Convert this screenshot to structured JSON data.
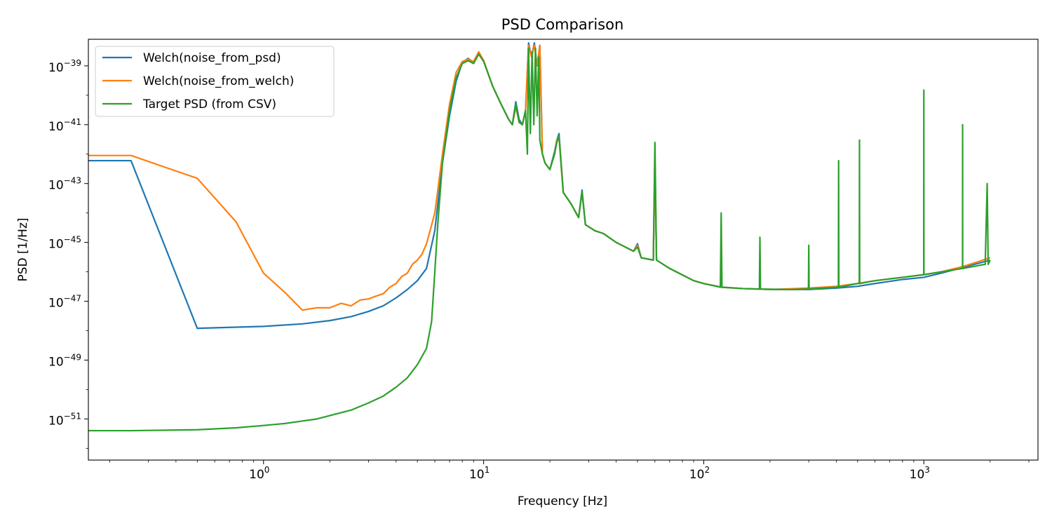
{
  "chart_data": {
    "type": "line",
    "title": "PSD Comparison",
    "xlabel": "Frequency [Hz]",
    "ylabel": "PSD [1/Hz]",
    "xscale": "log",
    "yscale": "log",
    "xlim": [
      0.16,
      3300
    ],
    "ylim": [
      4e-53,
      8e-39
    ],
    "x_ticks": [
      {
        "value": 1,
        "base": "10",
        "exp": "0"
      },
      {
        "value": 10,
        "base": "10",
        "exp": "1"
      },
      {
        "value": 100,
        "base": "10",
        "exp": "2"
      },
      {
        "value": 1000,
        "base": "10",
        "exp": "3"
      }
    ],
    "y_ticks": [
      {
        "value": 1e-51,
        "base": "10",
        "exp": "−51"
      },
      {
        "value": 1e-49,
        "base": "10",
        "exp": "−49"
      },
      {
        "value": 1e-47,
        "base": "10",
        "exp": "−47"
      },
      {
        "value": 1e-45,
        "base": "10",
        "exp": "−45"
      },
      {
        "value": 1e-43,
        "base": "10",
        "exp": "−43"
      },
      {
        "value": 1e-41,
        "base": "10",
        "exp": "−41"
      },
      {
        "value": 1e-39,
        "base": "10",
        "exp": "−39"
      }
    ],
    "legend_position": "top-left",
    "series": [
      {
        "name": "Welch(noise_from_psd)",
        "color": "#1f77b4",
        "points": [
          [
            0.16,
            6e-43
          ],
          [
            0.25,
            6e-43
          ],
          [
            0.5,
            1.2e-48
          ],
          [
            1,
            1.4e-48
          ],
          [
            1.5,
            1.7e-48
          ],
          [
            2,
            2.2e-48
          ],
          [
            2.5,
            3e-48
          ],
          [
            3,
            4.5e-48
          ],
          [
            3.5,
            7e-48
          ],
          [
            4,
            1.3e-47
          ],
          [
            4.5,
            2.5e-47
          ],
          [
            5,
            5e-47
          ],
          [
            5.5,
            1.3e-46
          ],
          [
            6,
            2.5e-45
          ],
          [
            6.5,
            5e-43
          ],
          [
            7,
            2e-41
          ],
          [
            7.5,
            3e-40
          ],
          [
            8,
            1.3e-39
          ],
          [
            8.5,
            1.8e-39
          ],
          [
            9,
            1.3e-39
          ],
          [
            9.5,
            2.8e-39
          ],
          [
            10,
            1.5e-39
          ],
          [
            11,
            2e-40
          ],
          [
            12,
            5e-41
          ],
          [
            13,
            1.5e-41
          ],
          [
            13.5,
            1e-41
          ],
          [
            14,
            6e-41
          ],
          [
            14.5,
            1.5e-41
          ],
          [
            15,
            1e-41
          ],
          [
            15.5,
            3e-41
          ],
          [
            16,
            6e-39
          ],
          [
            16.5,
            2e-39
          ],
          [
            17,
            6e-39
          ],
          [
            17.5,
            1e-39
          ],
          [
            18,
            5e-39
          ],
          [
            18.5,
            1e-42
          ],
          [
            19,
            5e-43
          ],
          [
            20,
            3e-43
          ],
          [
            21,
            1.2e-42
          ],
          [
            21.5,
            3e-42
          ],
          [
            22,
            5e-42
          ],
          [
            22.5,
            5e-43
          ],
          [
            23,
            5e-44
          ],
          [
            25,
            2e-44
          ],
          [
            27,
            7e-45
          ],
          [
            28,
            6e-44
          ],
          [
            29,
            4e-45
          ],
          [
            32,
            2.5e-45
          ],
          [
            35,
            2e-45
          ],
          [
            40,
            1e-45
          ],
          [
            48,
            5e-46
          ],
          [
            50,
            9e-46
          ],
          [
            52,
            3e-46
          ],
          [
            59,
            2.5e-46
          ],
          [
            60,
            8e-43
          ],
          [
            61,
            2.5e-46
          ],
          [
            70,
            1.3e-46
          ],
          [
            90,
            5e-47
          ],
          [
            100,
            4e-47
          ],
          [
            120,
            3e-47
          ],
          [
            150,
            2.7e-47
          ],
          [
            200,
            2.5e-47
          ],
          [
            300,
            2.5e-47
          ],
          [
            400,
            2.8e-47
          ],
          [
            500,
            3.2e-47
          ],
          [
            600,
            4e-47
          ],
          [
            800,
            5.5e-47
          ],
          [
            1000,
            6.5e-47
          ],
          [
            1200,
            9e-47
          ],
          [
            1500,
            1.4e-46
          ],
          [
            2000,
            2.5e-46
          ]
        ]
      },
      {
        "name": "Welch(noise_from_welch)",
        "color": "#ff7f0e",
        "points": [
          [
            0.16,
            9e-43
          ],
          [
            0.25,
            9e-43
          ],
          [
            0.5,
            1.5e-43
          ],
          [
            0.75,
            5e-45
          ],
          [
            1,
            9e-47
          ],
          [
            1.25,
            2e-47
          ],
          [
            1.5,
            5e-48
          ],
          [
            1.75,
            6e-48
          ],
          [
            2,
            6e-48
          ],
          [
            2.25,
            8.5e-48
          ],
          [
            2.5,
            7e-48
          ],
          [
            2.75,
            1.1e-47
          ],
          [
            3,
            1.2e-47
          ],
          [
            3.25,
            1.5e-47
          ],
          [
            3.5,
            1.8e-47
          ],
          [
            3.75,
            3e-47
          ],
          [
            4,
            4e-47
          ],
          [
            4.25,
            7e-47
          ],
          [
            4.5,
            9e-47
          ],
          [
            4.75,
            1.8e-46
          ],
          [
            5,
            2.5e-46
          ],
          [
            5.25,
            4e-46
          ],
          [
            5.5,
            9e-46
          ],
          [
            5.75,
            3e-45
          ],
          [
            6,
            1e-44
          ],
          [
            6.5,
            1e-42
          ],
          [
            7,
            5e-41
          ],
          [
            7.5,
            6e-40
          ],
          [
            8,
            1.4e-39
          ],
          [
            8.5,
            1.7e-39
          ],
          [
            9,
            1.4e-39
          ],
          [
            9.5,
            3e-39
          ],
          [
            10,
            1.5e-39
          ],
          [
            11,
            2e-40
          ],
          [
            12,
            5e-41
          ],
          [
            13,
            1.5e-41
          ],
          [
            13.5,
            1e-41
          ],
          [
            14,
            4e-41
          ],
          [
            14.5,
            1.2e-41
          ],
          [
            15,
            1e-41
          ],
          [
            15.5,
            3e-41
          ],
          [
            16,
            5e-39
          ],
          [
            16.5,
            2e-39
          ],
          [
            17,
            5e-39
          ],
          [
            17.5,
            1e-39
          ],
          [
            18,
            5e-39
          ],
          [
            18.5,
            1e-42
          ],
          [
            19,
            5e-43
          ],
          [
            20,
            3e-43
          ],
          [
            21,
            1e-42
          ],
          [
            21.5,
            3e-42
          ],
          [
            22,
            4e-42
          ],
          [
            22.5,
            5e-43
          ],
          [
            23,
            5e-44
          ],
          [
            25,
            2e-44
          ],
          [
            27,
            7e-45
          ],
          [
            28,
            5e-44
          ],
          [
            29,
            4e-45
          ],
          [
            32,
            2.5e-45
          ],
          [
            35,
            2e-45
          ],
          [
            40,
            1e-45
          ],
          [
            48,
            5e-46
          ],
          [
            50,
            8e-46
          ],
          [
            52,
            3e-46
          ],
          [
            59,
            2.5e-46
          ],
          [
            60,
            6e-43
          ],
          [
            61,
            2.5e-46
          ],
          [
            70,
            1.3e-46
          ],
          [
            90,
            5e-47
          ],
          [
            100,
            4e-47
          ],
          [
            120,
            3e-47
          ],
          [
            150,
            2.7e-47
          ],
          [
            200,
            2.5e-47
          ],
          [
            300,
            2.8e-47
          ],
          [
            400,
            3.2e-47
          ],
          [
            500,
            4e-47
          ],
          [
            600,
            5e-47
          ],
          [
            800,
            6.5e-47
          ],
          [
            1000,
            8e-47
          ],
          [
            1200,
            1e-46
          ],
          [
            1500,
            1.5e-46
          ],
          [
            2000,
            3e-46
          ]
        ]
      },
      {
        "name": "Target PSD (from CSV)",
        "color": "#2ca02c",
        "points": [
          [
            0.16,
            4e-52
          ],
          [
            0.25,
            4e-52
          ],
          [
            0.5,
            4.3e-52
          ],
          [
            0.75,
            5e-52
          ],
          [
            1,
            6e-52
          ],
          [
            1.25,
            7e-52
          ],
          [
            1.5,
            8.5e-52
          ],
          [
            1.75,
            1e-51
          ],
          [
            2,
            1.3e-51
          ],
          [
            2.5,
            2e-51
          ],
          [
            3,
            3.5e-51
          ],
          [
            3.5,
            6e-51
          ],
          [
            4,
            1.2e-50
          ],
          [
            4.5,
            2.5e-50
          ],
          [
            5,
            7e-50
          ],
          [
            5.5,
            2.5e-49
          ],
          [
            5.8,
            2e-48
          ],
          [
            6,
            1e-46
          ],
          [
            6.2,
            5e-45
          ],
          [
            6.5,
            5e-43
          ],
          [
            7,
            3e-41
          ],
          [
            7.5,
            4e-40
          ],
          [
            8,
            1.2e-39
          ],
          [
            8.5,
            1.5e-39
          ],
          [
            9,
            1.2e-39
          ],
          [
            9.5,
            2.5e-39
          ],
          [
            10,
            1.4e-39
          ],
          [
            11,
            2e-40
          ],
          [
            12,
            5e-41
          ],
          [
            13,
            1.5e-41
          ],
          [
            13.5,
            1e-41
          ],
          [
            14,
            5e-41
          ],
          [
            14.5,
            1.2e-41
          ],
          [
            15,
            1e-41
          ],
          [
            15.5,
            3e-41
          ],
          [
            15.8,
            1e-42
          ],
          [
            16,
            4e-39
          ],
          [
            16.3,
            5e-42
          ],
          [
            16.6,
            3e-39
          ],
          [
            16.9,
            1e-41
          ],
          [
            17.2,
            4e-39
          ],
          [
            17.5,
            2e-41
          ],
          [
            17.8,
            2e-39
          ],
          [
            18,
            3e-42
          ],
          [
            18.5,
            1e-42
          ],
          [
            19,
            5e-43
          ],
          [
            20,
            3e-43
          ],
          [
            21,
            1e-42
          ],
          [
            21.5,
            2.5e-42
          ],
          [
            22,
            4e-42
          ],
          [
            22.5,
            4e-43
          ],
          [
            23,
            5e-44
          ],
          [
            25,
            2e-44
          ],
          [
            27,
            7e-45
          ],
          [
            28,
            5e-44
          ],
          [
            29,
            4e-45
          ],
          [
            32,
            2.5e-45
          ],
          [
            35,
            2e-45
          ],
          [
            40,
            1e-45
          ],
          [
            48,
            5e-46
          ],
          [
            50,
            7e-46
          ],
          [
            52,
            3e-46
          ],
          [
            59,
            2.5e-46
          ],
          [
            60,
            2.5e-42
          ],
          [
            61,
            2.5e-46
          ],
          [
            70,
            1.3e-46
          ],
          [
            90,
            5e-47
          ],
          [
            100,
            4e-47
          ],
          [
            119,
            3e-47
          ],
          [
            120,
            1e-44
          ],
          [
            121,
            3e-47
          ],
          [
            150,
            2.7e-47
          ],
          [
            179,
            2.6e-47
          ],
          [
            180,
            1.5e-45
          ],
          [
            181,
            2.6e-47
          ],
          [
            250,
            2.5e-47
          ],
          [
            299,
            2.6e-47
          ],
          [
            300,
            8e-46
          ],
          [
            301,
            2.6e-47
          ],
          [
            400,
            3e-47
          ],
          [
            409,
            3e-47
          ],
          [
            410,
            6e-43
          ],
          [
            411,
            3e-47
          ],
          [
            500,
            4e-47
          ],
          [
            509,
            4e-47
          ],
          [
            510,
            3e-42
          ],
          [
            511,
            4e-47
          ],
          [
            600,
            5e-47
          ],
          [
            800,
            6.5e-47
          ],
          [
            999,
            8e-47
          ],
          [
            1000,
            1.5e-40
          ],
          [
            1001,
            8e-47
          ],
          [
            1200,
            1e-46
          ],
          [
            1499,
            1.3e-46
          ],
          [
            1500,
            1e-41
          ],
          [
            1501,
            1.3e-46
          ],
          [
            1900,
            1.8e-46
          ],
          [
            1940,
            1e-43
          ],
          [
            1960,
            1.8e-46
          ],
          [
            2000,
            2.5e-46
          ]
        ]
      }
    ]
  }
}
